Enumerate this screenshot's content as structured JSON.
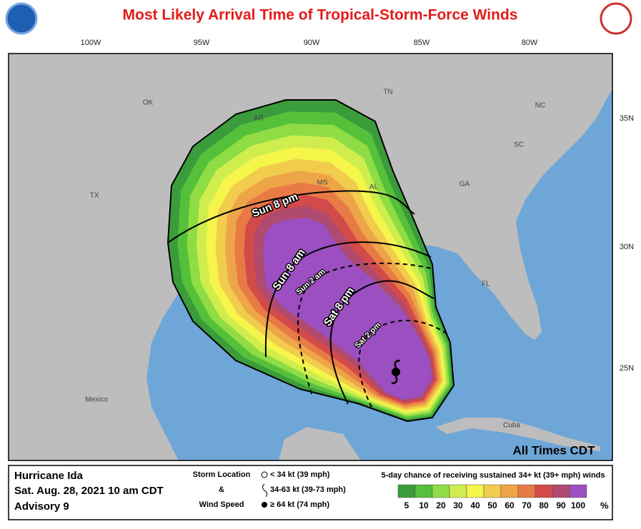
{
  "header": {
    "title": "Most Likely Arrival Time of Tropical-Storm-Force Winds"
  },
  "map": {
    "lon_labels": [
      "100W",
      "95W",
      "90W",
      "85W",
      "80W"
    ],
    "lat_labels": [
      "35N",
      "30N",
      "25N"
    ],
    "places": [
      "OK",
      "AR",
      "TN",
      "NC",
      "SC",
      "GA",
      "AL",
      "MS",
      "TX",
      "FL",
      "Mexico",
      "Cuba"
    ],
    "time_labels": [
      "Sun  8  pm",
      "Sun  8  am",
      "Sun  2  am",
      "Sat  8  pm",
      "Sat  2  pm"
    ],
    "note": "All Times CDT"
  },
  "legend": {
    "storm": "Hurricane Ida",
    "date": "Sat. Aug. 28, 2021  10 am CDT",
    "advisory": "Advisory 9",
    "storm_location": "Storm Location",
    "amp": "&",
    "wind_speed": "Wind Speed",
    "categories": [
      "< 34 kt (39 mph)",
      "34-63 kt (39-73 mph)",
      "≥ 64 kt (74 mph)"
    ],
    "scale_title": "5-day chance of receiving sustained 34+ kt (39+ mph) winds",
    "scale": [
      5,
      10,
      20,
      30,
      40,
      50,
      60,
      70,
      80,
      90,
      100
    ],
    "scale_unit": "%",
    "colors": [
      "#3b9c3b",
      "#55c03a",
      "#8fdc45",
      "#cfee4e",
      "#f5f54a",
      "#f2cc4d",
      "#eda548",
      "#e87a45",
      "#d24a4a",
      "#b04a6e",
      "#9b4fc0"
    ]
  }
}
